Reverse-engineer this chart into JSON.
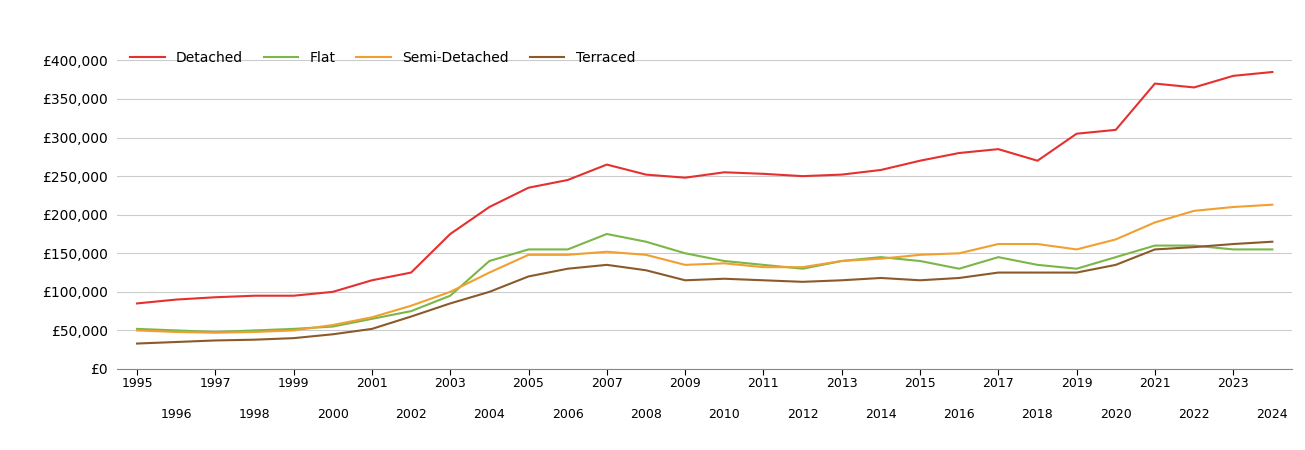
{
  "years": [
    1995,
    1996,
    1997,
    1998,
    1999,
    2000,
    2001,
    2002,
    2003,
    2004,
    2005,
    2006,
    2007,
    2008,
    2009,
    2010,
    2011,
    2012,
    2013,
    2014,
    2015,
    2016,
    2017,
    2018,
    2019,
    2020,
    2021,
    2022,
    2023,
    2024
  ],
  "detached": [
    85000,
    90000,
    93000,
    95000,
    95000,
    100000,
    115000,
    125000,
    175000,
    210000,
    235000,
    245000,
    265000,
    252000,
    248000,
    255000,
    253000,
    250000,
    252000,
    258000,
    270000,
    280000,
    285000,
    270000,
    305000,
    310000,
    370000,
    365000,
    380000,
    385000
  ],
  "flat": [
    52000,
    50000,
    48000,
    50000,
    52000,
    55000,
    65000,
    75000,
    95000,
    140000,
    155000,
    155000,
    175000,
    165000,
    150000,
    140000,
    135000,
    130000,
    140000,
    145000,
    140000,
    130000,
    145000,
    135000,
    130000,
    145000,
    160000,
    160000,
    155000,
    155000
  ],
  "semi_detached": [
    50000,
    48000,
    47000,
    48000,
    50000,
    57000,
    67000,
    82000,
    100000,
    125000,
    148000,
    148000,
    152000,
    148000,
    135000,
    137000,
    132000,
    132000,
    140000,
    143000,
    148000,
    150000,
    162000,
    162000,
    155000,
    168000,
    190000,
    205000,
    210000,
    213000
  ],
  "terraced": [
    33000,
    35000,
    37000,
    38000,
    40000,
    45000,
    52000,
    68000,
    85000,
    100000,
    120000,
    130000,
    135000,
    128000,
    115000,
    117000,
    115000,
    113000,
    115000,
    118000,
    115000,
    118000,
    125000,
    125000,
    125000,
    135000,
    155000,
    158000,
    162000,
    165000
  ],
  "colors": {
    "detached": "#e63030",
    "flat": "#7ab648",
    "semi_detached": "#f0a030",
    "terraced": "#8b5a2b"
  },
  "legend_labels": [
    "Detached",
    "Flat",
    "Semi-Detached",
    "Terraced"
  ],
  "ylim": [
    0,
    420000
  ],
  "yticks": [
    0,
    50000,
    100000,
    150000,
    200000,
    250000,
    300000,
    350000,
    400000
  ],
  "xlim": [
    1994.5,
    2024.5
  ],
  "background_color": "#ffffff",
  "grid_color": "#cccccc"
}
